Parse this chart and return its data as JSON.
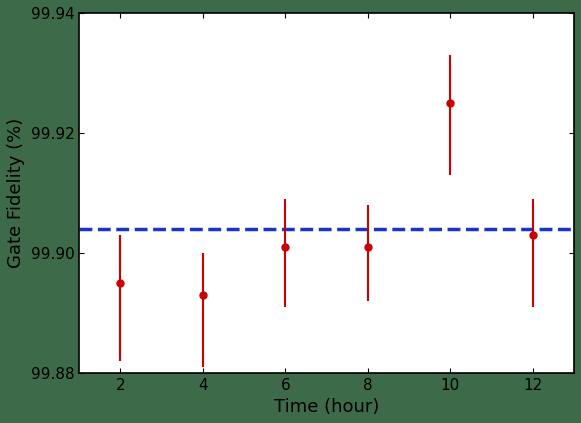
{
  "x": [
    2,
    4,
    6,
    8,
    10,
    12
  ],
  "y": [
    99.895,
    99.893,
    99.901,
    99.901,
    99.925,
    99.903
  ],
  "err_low": [
    0.013,
    0.012,
    0.01,
    0.009,
    0.012,
    0.012
  ],
  "err_high": [
    0.008,
    0.007,
    0.008,
    0.007,
    0.008,
    0.006
  ],
  "hline": 99.904,
  "hline_color": "#1a35cc",
  "point_color": "#cc0000",
  "xlabel": "Time (hour)",
  "ylabel": "Gate Fidelity (%)",
  "xlim": [
    1,
    13
  ],
  "ylim": [
    99.88,
    99.94
  ],
  "yticks": [
    99.88,
    99.9,
    99.92,
    99.94
  ],
  "xticks": [
    2,
    4,
    6,
    8,
    10,
    12
  ],
  "background_color": "#3d6b4a",
  "axes_background": "#ffffff",
  "xlabel_fontsize": 13,
  "ylabel_fontsize": 13,
  "tick_fontsize": 11
}
